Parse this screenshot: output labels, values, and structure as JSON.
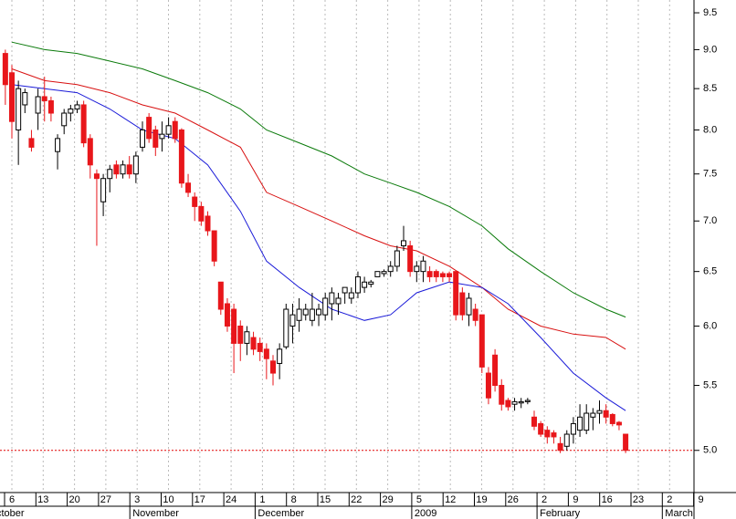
{
  "chart_data": {
    "type": "candlestick",
    "log_scale": true,
    "grid": true,
    "up_color": "#ffffff",
    "down_color": "#e8161b",
    "categories": [
      "Oct 3",
      "Oct 6",
      "Oct 7",
      "Oct 8",
      "Oct 9",
      "Oct 10",
      "Oct 13",
      "Oct 14",
      "Oct 15",
      "Oct 16",
      "Oct 17",
      "Oct 20",
      "Oct 21",
      "Oct 22",
      "Oct 23",
      "Oct 24",
      "Oct 27",
      "Oct 28",
      "Oct 29",
      "Oct 30",
      "Oct 31",
      "Nov 3",
      "Nov 4",
      "Nov 5",
      "Nov 6",
      "Nov 7",
      "Nov 10",
      "Nov 11",
      "Nov 12",
      "Nov 13",
      "Nov 14",
      "Nov 17",
      "Nov 18",
      "Nov 19",
      "Nov 20",
      "Nov 21",
      "Nov 24",
      "Nov 25",
      "Nov 26",
      "Nov 28",
      "Dec 1",
      "Dec 2",
      "Dec 3",
      "Dec 4",
      "Dec 5",
      "Dec 8",
      "Dec 9",
      "Dec 10",
      "Dec 11",
      "Dec 12",
      "Dec 15",
      "Dec 16",
      "Dec 17",
      "Dec 18",
      "Dec 19",
      "Dec 22",
      "Dec 23",
      "Dec 24",
      "Dec 26",
      "Dec 29",
      "Dec 30",
      "Dec 31",
      "Jan 2",
      "Jan 5",
      "Jan 6",
      "Jan 7",
      "Jan 8",
      "Jan 9",
      "Jan 12",
      "Jan 13",
      "Jan 14",
      "Jan 15",
      "Jan 16",
      "Jan 20",
      "Jan 21",
      "Jan 22",
      "Jan 23",
      "Jan 26",
      "Jan 27",
      "Jan 28",
      "Jan 29",
      "Jan 30",
      "Feb 2",
      "Feb 3",
      "Feb 4",
      "Feb 5",
      "Feb 6",
      "Feb 9",
      "Feb 10",
      "Feb 11",
      "Feb 12",
      "Feb 13",
      "Feb 17",
      "Feb 18",
      "Feb 19",
      "Feb 20"
    ],
    "open": [
      8.95,
      8.7,
      8.0,
      8.3,
      7.9,
      8.2,
      8.4,
      8.35,
      7.75,
      8.05,
      8.2,
      8.25,
      8.3,
      7.9,
      7.5,
      7.2,
      7.45,
      7.6,
      7.5,
      7.6,
      7.5,
      7.8,
      8.15,
      8.0,
      7.9,
      7.95,
      8.1,
      8.0,
      7.4,
      7.25,
      7.15,
      7.05,
      6.9,
      6.4,
      6.2,
      6.15,
      6.0,
      5.85,
      5.9,
      5.85,
      5.8,
      5.7,
      5.68,
      5.82,
      6.0,
      6.05,
      6.1,
      6.05,
      6.1,
      6.1,
      6.2,
      6.2,
      6.3,
      6.25,
      6.3,
      6.35,
      6.38,
      6.45,
      6.48,
      6.5,
      6.55,
      6.75,
      6.75,
      6.5,
      6.5,
      6.5,
      6.5,
      6.48,
      6.48,
      6.5,
      6.3,
      6.1,
      6.15,
      6.1,
      5.6,
      5.75,
      5.5,
      5.38,
      5.35,
      5.36,
      5.37,
      5.25,
      5.2,
      5.15,
      5.13,
      5.05,
      5.03,
      5.12,
      5.15,
      5.15,
      5.25,
      5.28,
      5.3,
      5.27,
      5.21,
      5.12
    ],
    "high": [
      9.0,
      8.8,
      8.6,
      8.5,
      8.0,
      8.5,
      8.65,
      8.4,
      7.95,
      8.25,
      8.3,
      8.35,
      8.35,
      7.95,
      7.55,
      7.5,
      7.6,
      7.65,
      7.65,
      7.7,
      7.75,
      8.1,
      8.2,
      8.05,
      8.1,
      8.15,
      8.15,
      8.02,
      7.5,
      7.3,
      7.2,
      7.1,
      6.9,
      6.4,
      6.25,
      6.2,
      6.05,
      6.0,
      5.95,
      5.9,
      5.85,
      5.75,
      5.85,
      6.2,
      6.2,
      6.25,
      6.2,
      6.3,
      6.2,
      6.3,
      6.35,
      6.3,
      6.35,
      6.35,
      6.5,
      6.45,
      6.42,
      6.5,
      6.52,
      6.6,
      6.75,
      6.95,
      6.8,
      6.6,
      6.65,
      6.55,
      6.52,
      6.5,
      6.5,
      6.5,
      6.35,
      6.3,
      6.2,
      6.1,
      5.65,
      5.8,
      5.55,
      5.4,
      5.4,
      5.4,
      5.4,
      5.3,
      5.22,
      5.18,
      5.15,
      5.1,
      5.15,
      5.25,
      5.35,
      5.35,
      5.32,
      5.38,
      5.35,
      5.28,
      5.22,
      5.12
    ],
    "low": [
      8.3,
      7.9,
      7.6,
      8.2,
      7.75,
      8.0,
      8.1,
      8.1,
      7.55,
      7.95,
      8.1,
      8.2,
      7.8,
      7.45,
      6.75,
      7.05,
      7.3,
      7.45,
      7.45,
      7.45,
      7.4,
      7.75,
      7.85,
      7.7,
      7.75,
      7.9,
      7.85,
      7.35,
      7.25,
      7.0,
      6.95,
      6.85,
      6.55,
      6.1,
      5.95,
      5.6,
      5.7,
      5.75,
      5.75,
      5.7,
      5.55,
      5.5,
      5.55,
      5.8,
      5.85,
      5.95,
      6.05,
      6.0,
      6.0,
      6.05,
      6.05,
      6.1,
      6.2,
      6.2,
      6.25,
      6.3,
      6.35,
      6.45,
      6.45,
      6.45,
      6.5,
      6.7,
      6.45,
      6.4,
      6.4,
      6.4,
      6.4,
      6.4,
      6.4,
      6.05,
      6.05,
      6.0,
      6.0,
      5.6,
      5.35,
      5.45,
      5.3,
      5.3,
      5.3,
      5.32,
      5.35,
      5.15,
      5.1,
      5.05,
      5.05,
      4.98,
      5.0,
      5.05,
      5.1,
      5.12,
      5.15,
      5.2,
      5.2,
      5.18,
      5.15,
      4.98
    ],
    "close": [
      8.55,
      8.1,
      8.5,
      8.45,
      7.8,
      8.4,
      8.35,
      8.2,
      7.9,
      8.2,
      8.25,
      8.3,
      7.85,
      7.6,
      7.45,
      7.45,
      7.55,
      7.5,
      7.6,
      7.5,
      7.7,
      8.0,
      7.9,
      7.8,
      7.95,
      8.05,
      7.9,
      7.4,
      7.3,
      7.15,
      7.0,
      6.9,
      6.6,
      6.15,
      6.0,
      5.85,
      5.85,
      5.95,
      5.8,
      5.78,
      5.72,
      5.6,
      5.8,
      6.15,
      6.1,
      6.15,
      6.15,
      6.15,
      6.15,
      6.25,
      6.3,
      6.25,
      6.35,
      6.3,
      6.45,
      6.4,
      6.4,
      6.5,
      6.5,
      6.55,
      6.7,
      6.8,
      6.5,
      6.55,
      6.6,
      6.45,
      6.45,
      6.45,
      6.45,
      6.1,
      6.1,
      6.25,
      6.05,
      5.65,
      5.4,
      5.5,
      5.35,
      5.33,
      5.37,
      5.37,
      5.38,
      5.18,
      5.12,
      5.1,
      5.1,
      5.0,
      5.12,
      5.2,
      5.25,
      5.28,
      5.28,
      5.3,
      5.25,
      5.2,
      5.19,
      5.0
    ],
    "series": [
      {
        "color": "#0a7a0a",
        "x": [
          "Oct 6",
          "Oct 13",
          "Oct 20",
          "Oct 27",
          "Nov 3",
          "Nov 10",
          "Nov 17",
          "Nov 24",
          "Dec 1",
          "Dec 8",
          "Dec 15",
          "Dec 22",
          "Dec 29",
          "Jan 5",
          "Jan 12",
          "Jan 20",
          "Jan 26",
          "Feb 2",
          "Feb 9",
          "Feb 17",
          "Feb 20"
        ],
        "values": [
          9.1,
          9.0,
          8.95,
          8.85,
          8.75,
          8.6,
          8.45,
          8.25,
          8.0,
          7.85,
          7.7,
          7.5,
          7.4,
          7.3,
          7.15,
          6.95,
          6.72,
          6.5,
          6.3,
          6.15,
          6.08
        ]
      },
      {
        "color": "#d81010",
        "x": [
          "Oct 6",
          "Oct 13",
          "Oct 20",
          "Oct 27",
          "Nov 3",
          "Nov 10",
          "Nov 17",
          "Nov 24",
          "Dec 1",
          "Dec 8",
          "Dec 15",
          "Dec 22",
          "Dec 29",
          "Jan 5",
          "Jan 12",
          "Jan 20",
          "Jan 26",
          "Feb 2",
          "Feb 9",
          "Feb 17",
          "Feb 20"
        ],
        "values": [
          8.75,
          8.6,
          8.55,
          8.45,
          8.3,
          8.2,
          8.0,
          7.8,
          7.3,
          7.15,
          7.0,
          6.85,
          6.75,
          6.7,
          6.55,
          6.35,
          6.15,
          6.0,
          5.93,
          5.9,
          5.8
        ]
      },
      {
        "color": "#1a1ad8",
        "x": [
          "Oct 6",
          "Oct 13",
          "Oct 20",
          "Oct 27",
          "Nov 3",
          "Nov 10",
          "Nov 17",
          "Nov 24",
          "Dec 1",
          "Dec 8",
          "Dec 15",
          "Dec 22",
          "Dec 29",
          "Jan 5",
          "Jan 12",
          "Jan 20",
          "Jan 26",
          "Feb 2",
          "Feb 9",
          "Feb 17",
          "Feb 20"
        ],
        "values": [
          8.55,
          8.5,
          8.45,
          8.25,
          8.0,
          7.9,
          7.6,
          7.1,
          6.6,
          6.35,
          6.15,
          6.05,
          6.1,
          6.3,
          6.4,
          6.35,
          6.2,
          5.9,
          5.6,
          5.4,
          5.3
        ]
      }
    ],
    "reference_line": {
      "value": 5.0,
      "color": "#e00000"
    },
    "ylim": [
      4.7,
      9.68
    ],
    "yticks": [
      {
        "value": 5,
        "label": "5.0"
      },
      5.5,
      {
        "value": 6,
        "label": "6.0"
      },
      6.5,
      {
        "value": 7,
        "label": "7.0"
      },
      7.5,
      {
        "value": 8,
        "label": "8.0"
      },
      8.5,
      {
        "value": 9,
        "label": "9.0"
      },
      9.5
    ],
    "xticks": [
      "6",
      "13",
      "20",
      "27",
      "3",
      "10",
      "17",
      "24",
      "1",
      "8",
      "15",
      "22",
      "29",
      "5",
      "12",
      "19",
      "26",
      "2",
      "9",
      "16",
      "23",
      "2",
      "9"
    ],
    "month_labels": [
      "October",
      "November",
      "December",
      "2009",
      "February",
      "March"
    ]
  }
}
